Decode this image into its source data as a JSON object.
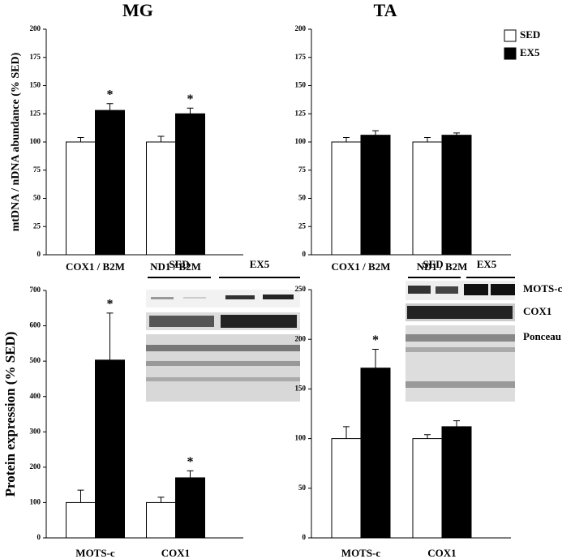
{
  "chart_data": [
    {
      "type": "bar",
      "title": "MG",
      "ylabel": "mtDNA / nDNA abundance (% SED)",
      "categories": [
        "COX1 / B2M",
        "ND1 / B2M"
      ],
      "series": [
        {
          "name": "SED",
          "color": "#ffffff",
          "values": [
            100,
            100
          ],
          "errors": [
            4,
            5
          ]
        },
        {
          "name": "EX5",
          "color": "#000000",
          "values": [
            128,
            125
          ],
          "errors": [
            6,
            5
          ],
          "markers": [
            "*",
            "*"
          ]
        }
      ],
      "ylim": [
        0,
        200
      ],
      "yticks": [
        0,
        25,
        50,
        75,
        100,
        125,
        150,
        175,
        200
      ],
      "legend": false
    },
    {
      "type": "bar",
      "title": "TA",
      "categories": [
        "COX1 / B2M",
        "ND1 / B2M"
      ],
      "series": [
        {
          "name": "SED",
          "color": "#ffffff",
          "values": [
            100,
            100
          ],
          "errors": [
            4,
            4
          ]
        },
        {
          "name": "EX5",
          "color": "#000000",
          "values": [
            106,
            106
          ],
          "errors": [
            4,
            2
          ]
        }
      ],
      "ylim": [
        0,
        200
      ],
      "yticks": [
        0,
        25,
        50,
        75,
        100,
        125,
        150,
        175,
        200
      ],
      "legend": true
    },
    {
      "type": "bar",
      "ylabel": "Protein expression (% SED)",
      "categories": [
        "MOTS-c",
        "COX1"
      ],
      "series": [
        {
          "name": "SED",
          "color": "#ffffff",
          "values": [
            100,
            100
          ],
          "errors": [
            35,
            15
          ]
        },
        {
          "name": "EX5",
          "color": "#000000",
          "values": [
            503,
            170
          ],
          "errors": [
            133,
            20
          ],
          "markers": [
            "*",
            "*"
          ]
        }
      ],
      "ylim": [
        0,
        700
      ],
      "yticks": [
        0,
        100,
        200,
        300,
        400,
        500,
        600,
        700
      ],
      "legend": false,
      "blot": {
        "groups": [
          "SED",
          "EX5"
        ]
      }
    },
    {
      "type": "bar",
      "categories": [
        "MOTS-c",
        "COX1"
      ],
      "series": [
        {
          "name": "SED",
          "color": "#ffffff",
          "values": [
            100,
            100
          ],
          "errors": [
            12,
            4
          ]
        },
        {
          "name": "EX5",
          "color": "#000000",
          "values": [
            171,
            112
          ],
          "errors": [
            19,
            6
          ],
          "markers": [
            "*",
            null
          ]
        }
      ],
      "ylim": [
        0,
        250
      ],
      "yticks": [
        0,
        50,
        100,
        150,
        200,
        250
      ],
      "legend": false,
      "blot": {
        "groups": [
          "SED",
          "EX5"
        ],
        "rows": [
          "MOTS-c",
          "COX1",
          "Ponceau"
        ]
      }
    }
  ]
}
